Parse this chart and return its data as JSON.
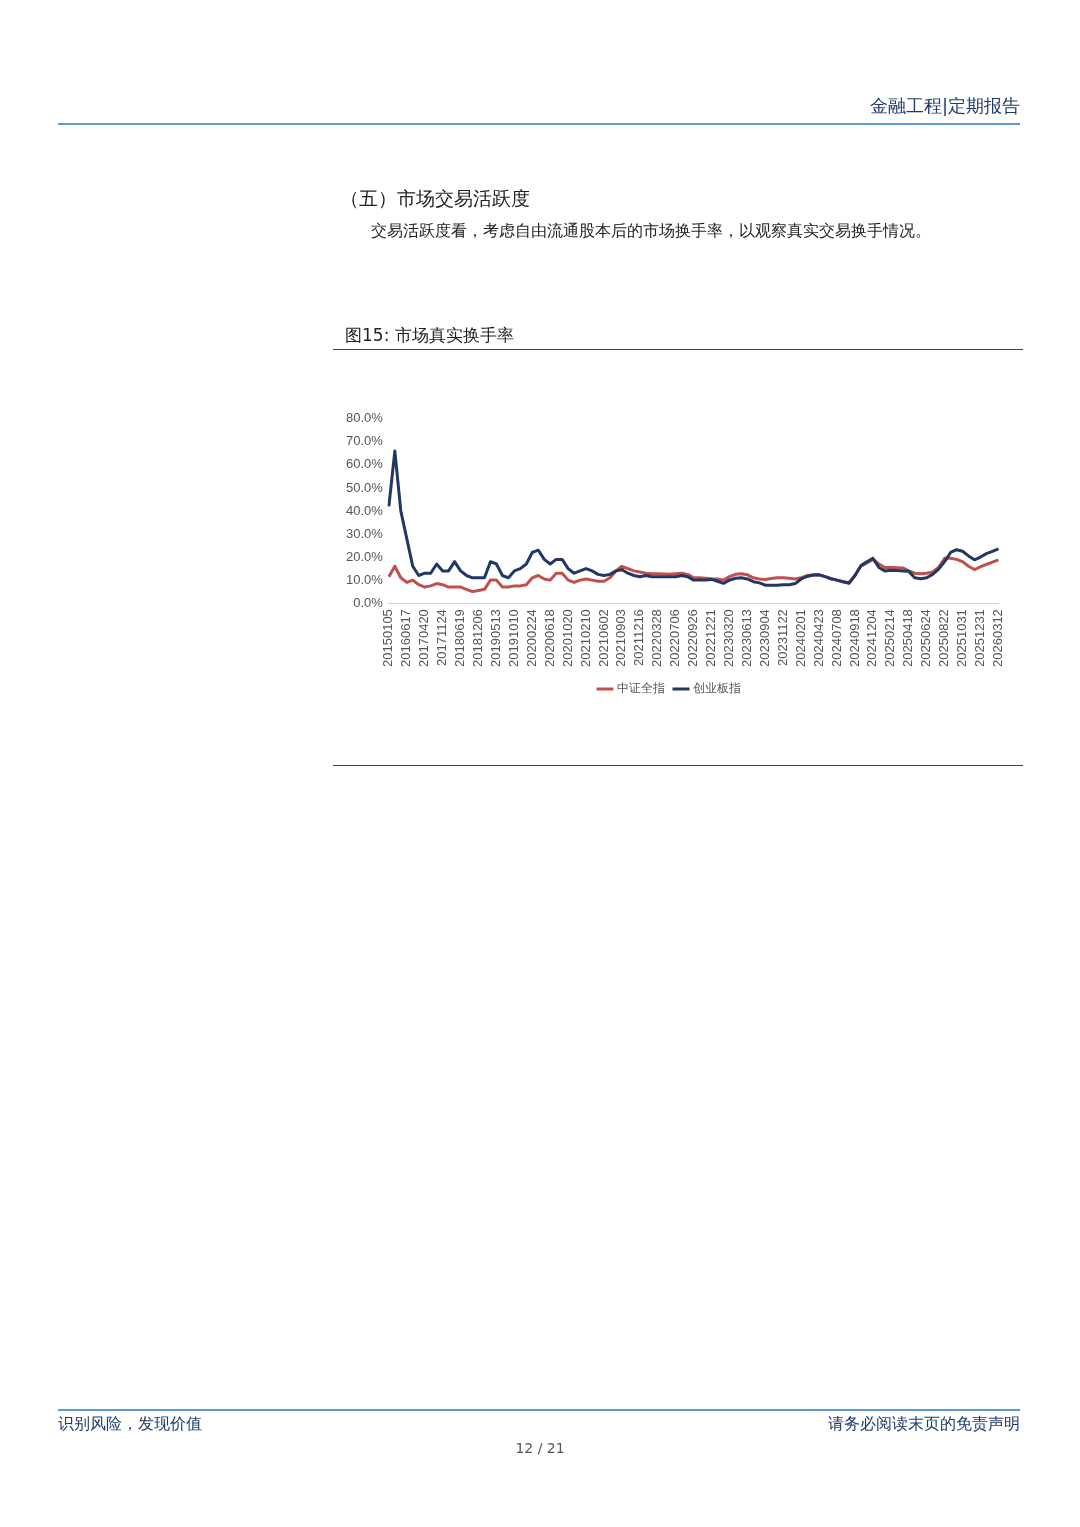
{
  "chart_data": {
    "type": "line",
    "title": "图15: 市场真实换手率",
    "annotations": [
      "金融工程|定期报告",
      "（五）市场交易活跃度",
      "交易活跃度看，考虑自由流通股本后的市场换手率，以观察真实交易换手情况。",
      "识别风险，发现价值",
      "请务必阅读末页的免责声明",
      "12 / 21"
    ],
    "categories": [
      "20150105",
      null,
      null,
      "20160617",
      null,
      null,
      "20170420",
      null,
      null,
      "20171124",
      null,
      null,
      "20180619",
      null,
      null,
      "20181206",
      null,
      null,
      "20190513",
      null,
      null,
      "20191010",
      null,
      null,
      "20200224",
      null,
      null,
      "20200618",
      null,
      null,
      "20201020",
      null,
      null,
      "20210210",
      null,
      null,
      "20210602",
      null,
      null,
      "20210903",
      null,
      null,
      "20211216",
      null,
      null,
      "20220328",
      null,
      null,
      "20220706",
      null,
      null,
      "20220926",
      null,
      null,
      "20221221",
      null,
      null,
      "20230320",
      null,
      null,
      "20230613",
      null,
      null,
      "20230904",
      null,
      null,
      "20231122",
      null,
      null,
      "20240201",
      null,
      null,
      "20240423",
      null,
      null,
      "20240708",
      null,
      null,
      "20240918",
      null,
      null,
      "20241204",
      null,
      null,
      "20250214",
      null,
      null,
      "20250418",
      null,
      null,
      "20250624",
      null,
      null,
      "20250822",
      null,
      null,
      "20251031",
      null,
      null,
      "20251231",
      null,
      null,
      "20260312"
    ],
    "series": [
      {
        "name": "中证全指",
        "color": "#c0504d",
        "values": [
          11.5,
          16,
          11,
          9,
          10,
          8,
          7,
          7.5,
          8.5,
          8,
          7,
          7,
          7,
          6,
          5,
          5.5,
          6,
          10,
          10,
          7,
          7,
          7.5,
          7.5,
          8,
          11,
          12,
          10.5,
          10,
          13,
          13,
          10,
          9,
          10,
          10.5,
          10,
          9.5,
          9.5,
          11,
          14,
          16,
          15,
          14,
          13.5,
          13,
          12.8,
          12.8,
          12.7,
          12.5,
          12.8,
          13,
          12.5,
          11,
          11,
          10.8,
          10.6,
          10.5,
          10,
          11.5,
          12.5,
          12.8,
          12.3,
          11,
          10.5,
          10.3,
          10.7,
          11,
          11,
          10.8,
          10.5,
          11,
          12,
          12.2,
          12.3,
          11.5,
          10.6,
          10,
          9.3,
          9,
          12,
          16,
          17.5,
          19,
          17,
          15.5,
          15.5,
          15.4,
          15.3,
          14,
          13,
          12.8,
          13,
          13.5,
          15.5,
          19.5,
          19.5,
          19,
          18,
          16,
          14.6,
          15.8,
          16.8,
          17.8,
          18.8
        ]
      },
      {
        "name": "创业板指",
        "color": "#203864",
        "values": [
          42,
          66,
          40,
          28,
          16,
          12,
          13,
          13,
          17,
          14,
          14,
          18,
          14,
          12,
          11,
          11,
          11,
          18,
          17,
          12,
          11,
          14,
          15,
          17,
          22,
          23,
          19,
          17,
          19,
          19,
          15,
          13,
          14,
          15,
          14,
          12.5,
          12,
          12.5,
          14,
          14.5,
          13,
          12,
          11.5,
          12,
          11.5,
          11.5,
          11.5,
          11.5,
          11.5,
          12,
          11.5,
          10,
          10,
          10,
          10.3,
          9.5,
          8.6,
          10,
          10.8,
          11,
          10.5,
          9.3,
          8.8,
          7.8,
          7.8,
          7.8,
          8,
          8,
          8.5,
          10.5,
          11.6,
          12.2,
          12.3,
          11.5,
          10.6,
          10,
          9.3,
          8.6,
          12,
          16.3,
          18,
          19.5,
          15.5,
          14,
          14.3,
          14.2,
          14,
          13.8,
          11,
          10.6,
          11,
          12.5,
          14.8,
          18,
          22,
          23.2,
          22.5,
          20.5,
          18.8,
          20,
          21.5,
          22.5,
          23.6
        ]
      }
    ],
    "ylim": [
      0,
      80
    ],
    "yticks": [
      {
        "value": 0,
        "label": "0.0%"
      },
      {
        "value": 10,
        "label": "10.0%"
      },
      {
        "value": 20,
        "label": "20.0%"
      },
      {
        "value": 30,
        "label": "30.0%"
      },
      {
        "value": 40,
        "label": "40.0%"
      },
      {
        "value": 50,
        "label": "50.0%"
      },
      {
        "value": 60,
        "label": "60.0%"
      },
      {
        "value": 70,
        "label": "70.0%"
      },
      {
        "value": 80,
        "label": "80.0%"
      }
    ],
    "grid": false,
    "legend": "bottom",
    "marker": "none",
    "line_style": "solid"
  }
}
